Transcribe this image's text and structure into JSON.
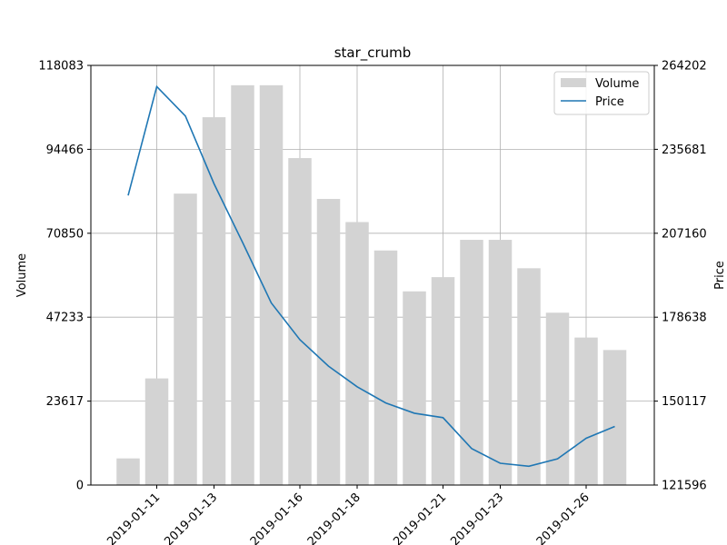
{
  "chart_data": {
    "type": "bar+line",
    "title": "star_crumb",
    "xlabel": "",
    "ylabel_left": "Volume",
    "ylabel_right": "Price",
    "x": [
      "2019-01-10",
      "2019-01-11",
      "2019-01-12",
      "2019-01-13",
      "2019-01-14",
      "2019-01-15",
      "2019-01-16",
      "2019-01-17",
      "2019-01-18",
      "2019-01-19",
      "2019-01-20",
      "2019-01-21",
      "2019-01-22",
      "2019-01-23",
      "2019-01-24",
      "2019-01-25",
      "2019-01-26",
      "2019-01-27"
    ],
    "x_tick_labels": [
      "2019-01-11",
      "2019-01-13",
      "2019-01-16",
      "2019-01-18",
      "2019-01-21",
      "2019-01-23",
      "2019-01-26"
    ],
    "y_left_ticks": [
      "0",
      "23617",
      "47233",
      "70850",
      "94466",
      "118083"
    ],
    "y_right_ticks": [
      "121596",
      "150117",
      "178638",
      "207160",
      "235681",
      "264202"
    ],
    "ylim_left": [
      0,
      118083
    ],
    "ylim_right": [
      121596,
      264202
    ],
    "grid": true,
    "legend_position": "top-right",
    "series": [
      {
        "name": "Volume",
        "type": "bar",
        "axis": "left",
        "color": "#d3d3d3",
        "values": [
          7500,
          30000,
          82000,
          103500,
          112500,
          112500,
          92000,
          80500,
          74000,
          66000,
          54500,
          58500,
          69000,
          69000,
          61000,
          48500,
          41500,
          38000
        ]
      },
      {
        "name": "Price",
        "type": "line",
        "axis": "right",
        "color": "#1f77b4",
        "values": [
          220000,
          257000,
          247000,
          224000,
          204000,
          183500,
          171000,
          162000,
          155000,
          149500,
          146000,
          144500,
          134000,
          129000,
          128000,
          130500,
          137500,
          141500
        ]
      }
    ]
  }
}
